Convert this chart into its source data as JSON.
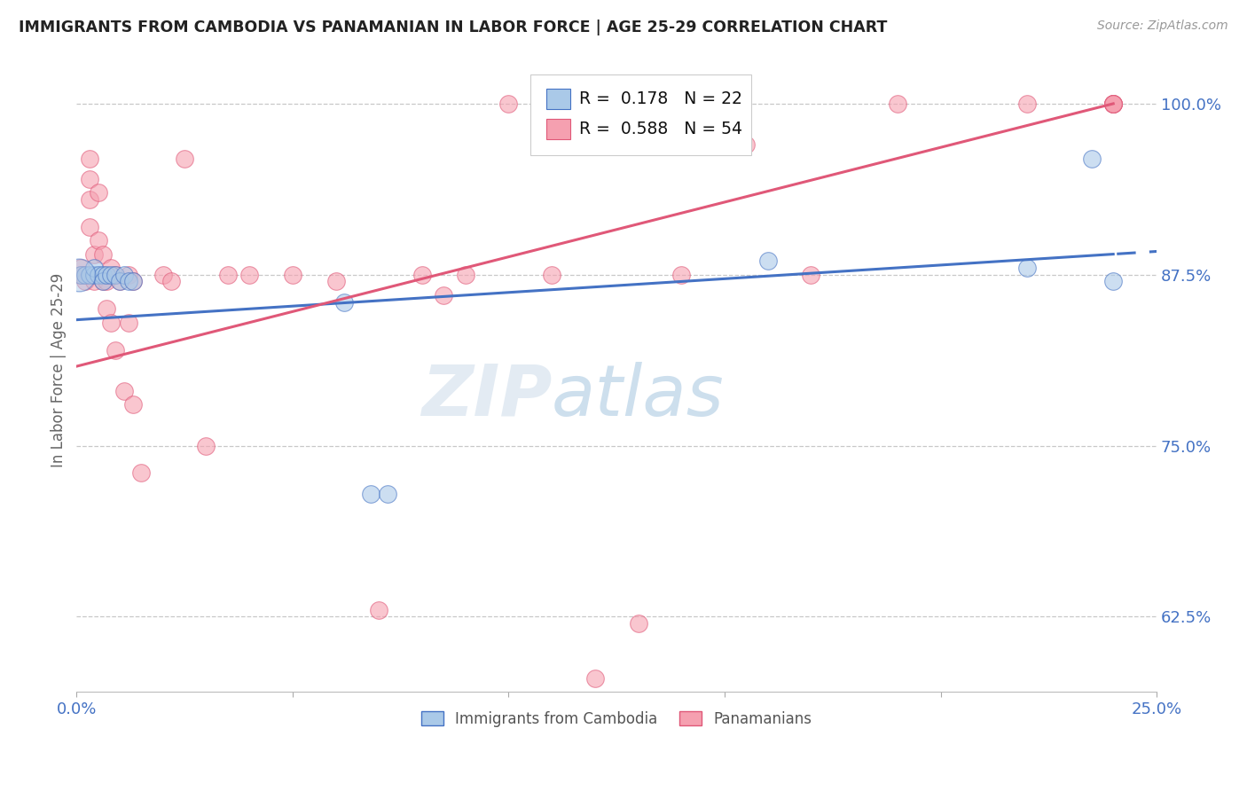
{
  "title": "IMMIGRANTS FROM CAMBODIA VS PANAMANIAN IN LABOR FORCE | AGE 25-29 CORRELATION CHART",
  "source": "Source: ZipAtlas.com",
  "ylabel": "In Labor Force | Age 25-29",
  "xlim": [
    0.0,
    0.25
  ],
  "ylim": [
    0.57,
    1.04
  ],
  "xticks": [
    0.0,
    0.05,
    0.1,
    0.15,
    0.2,
    0.25
  ],
  "xticklabels": [
    "0.0%",
    "",
    "",
    "",
    "",
    "25.0%"
  ],
  "yticks": [
    0.625,
    0.75,
    0.875,
    1.0
  ],
  "yticklabels": [
    "62.5%",
    "75.0%",
    "87.5%",
    "100.0%"
  ],
  "watermark_zip": "ZIP",
  "watermark_atlas": "atlas",
  "legend_blue_r": "0.178",
  "legend_blue_n": "22",
  "legend_pink_r": "0.588",
  "legend_pink_n": "54",
  "blue_fill": "#aac9e8",
  "blue_edge": "#4472c4",
  "pink_fill": "#f5a0b0",
  "pink_edge": "#e05878",
  "blue_line": "#4472c4",
  "pink_line": "#e05878",
  "grid_color": "#c8c8c8",
  "cambodia_x": [
    0.001,
    0.002,
    0.003,
    0.004,
    0.004,
    0.005,
    0.006,
    0.006,
    0.007,
    0.008,
    0.009,
    0.01,
    0.011,
    0.012,
    0.013,
    0.062,
    0.068,
    0.072,
    0.16,
    0.22,
    0.235,
    0.24
  ],
  "cambodia_y": [
    0.875,
    0.875,
    0.875,
    0.875,
    0.88,
    0.875,
    0.875,
    0.87,
    0.875,
    0.875,
    0.875,
    0.87,
    0.875,
    0.87,
    0.87,
    0.855,
    0.715,
    0.715,
    0.885,
    0.88,
    0.96,
    0.87
  ],
  "panama_x": [
    0.001,
    0.001,
    0.002,
    0.002,
    0.003,
    0.003,
    0.003,
    0.003,
    0.004,
    0.004,
    0.005,
    0.005,
    0.006,
    0.006,
    0.007,
    0.007,
    0.008,
    0.008,
    0.009,
    0.009,
    0.01,
    0.011,
    0.012,
    0.012,
    0.013,
    0.013,
    0.015,
    0.02,
    0.022,
    0.025,
    0.03,
    0.035,
    0.04,
    0.05,
    0.06,
    0.07,
    0.08,
    0.085,
    0.09,
    0.1,
    0.11,
    0.12,
    0.13,
    0.14,
    0.15,
    0.155,
    0.17,
    0.19,
    0.22,
    0.24,
    0.24,
    0.24,
    0.24,
    0.24
  ],
  "panama_y": [
    0.875,
    0.88,
    0.875,
    0.87,
    0.96,
    0.945,
    0.93,
    0.91,
    0.89,
    0.87,
    0.935,
    0.9,
    0.89,
    0.87,
    0.87,
    0.85,
    0.88,
    0.84,
    0.875,
    0.82,
    0.87,
    0.79,
    0.875,
    0.84,
    0.87,
    0.78,
    0.73,
    0.875,
    0.87,
    0.96,
    0.75,
    0.875,
    0.875,
    0.875,
    0.87,
    0.63,
    0.875,
    0.86,
    0.875,
    1.0,
    0.875,
    0.58,
    0.62,
    0.875,
    1.0,
    0.97,
    0.875,
    1.0,
    1.0,
    1.0,
    1.0,
    1.0,
    1.0,
    1.0
  ],
  "blue_line_intercept": 0.842,
  "blue_line_slope": 0.2,
  "pink_line_intercept": 0.808,
  "pink_line_slope": 0.8
}
